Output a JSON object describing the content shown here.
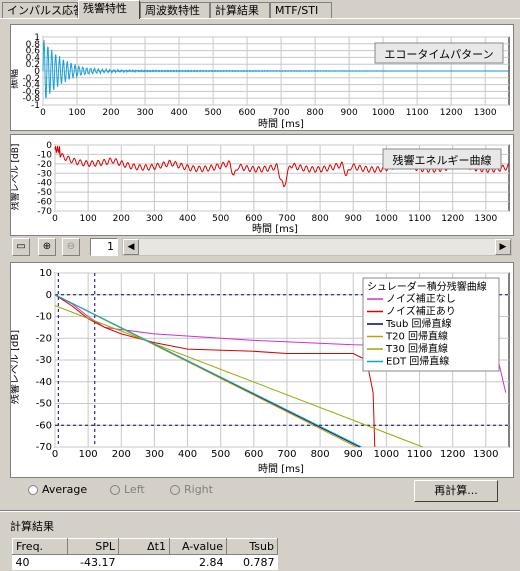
{
  "tabs": [
    "インパルス応答",
    "残響特性",
    "周波数特性",
    "計算結果",
    "MTF/STI"
  ],
  "active_tab": 1,
  "echo_chart": {
    "label": "エコータイムパターン",
    "ylabel": "振幅",
    "xlabel": "時間 [ms]",
    "yticks": [
      "1",
      "0.8",
      "0.6",
      "0.4",
      "0.2",
      "0",
      "-0.2",
      "-0.4",
      "-0.6",
      "-0.8",
      "-1"
    ],
    "xticks": [
      "0",
      "100",
      "200",
      "300",
      "400",
      "500",
      "600",
      "700",
      "800",
      "900",
      "1000",
      "1100",
      "1200",
      "1300"
    ]
  },
  "decay_chart": {
    "label": "残響エネルギー曲線",
    "ylabel": "残響レベル [dB]",
    "xlabel": "時間 [ms]",
    "yticks": [
      "0",
      "-10",
      "-20",
      "-30",
      "-40",
      "-50",
      "-60",
      "-70"
    ],
    "xticks": [
      "0",
      "100",
      "200",
      "300",
      "400",
      "500",
      "600",
      "700",
      "800",
      "900",
      "1000",
      "1100",
      "1200",
      "1300"
    ]
  },
  "nav": {
    "page": "1"
  },
  "schroeder_chart": {
    "ylabel": "残響レベル [dB]",
    "xlabel": "時間 [ms]",
    "yticks": [
      "10",
      "0",
      "-10",
      "-20",
      "-30",
      "-40",
      "-50",
      "-60",
      "-70"
    ],
    "xticks": [
      "0",
      "100",
      "200",
      "300",
      "400",
      "500",
      "600",
      "700",
      "800",
      "900",
      "1000",
      "1100",
      "1200",
      "1300"
    ],
    "legend_title": "シュレーダー積分残響曲線",
    "legend": [
      {
        "name": "ノイズ補正なし",
        "color": "#cc33cc"
      },
      {
        "name": "ノイズ補正あり",
        "color": "#dd0000"
      },
      {
        "name": "Tsub 回帰直線",
        "color": "#000080"
      },
      {
        "name": "T20 回帰直線",
        "color": "#cc9900"
      },
      {
        "name": "T30 回帰直線",
        "color": "#99aa00"
      },
      {
        "name": "EDT 回帰直線",
        "color": "#00aacc"
      }
    ]
  },
  "chart_data": [
    {
      "type": "line",
      "name": "エコータイムパターン",
      "xlim": [
        0,
        1370
      ],
      "ylim": [
        -1,
        1
      ],
      "note_shape": "decaying oscillation, amplitude ~1 at 0 ms decaying to ~0 by 200 ms"
    },
    {
      "type": "line",
      "name": "残響エネルギー曲線",
      "xlim": [
        0,
        1370
      ],
      "ylim": [
        -70,
        0
      ]
    },
    {
      "type": "line",
      "xlim": [
        0,
        1370
      ],
      "ylim": [
        -70,
        10
      ],
      "series": [
        {
          "name": "ノイズ補正なし",
          "x": [
            0,
            50,
            100,
            150,
            300,
            600,
            900,
            1200,
            1330,
            1360
          ],
          "y": [
            0,
            -4,
            -10,
            -15,
            -18,
            -21,
            -23,
            -24,
            -25,
            -45
          ]
        },
        {
          "name": "ノイズ補正あり",
          "x": [
            0,
            50,
            100,
            150,
            200,
            300,
            400,
            600,
            700,
            900,
            940,
            960,
            965
          ],
          "y": [
            0,
            -5,
            -11,
            -15,
            -18,
            -22,
            -25,
            -26,
            -27,
            -27,
            -30,
            -45,
            -70
          ]
        },
        {
          "name": "Tsub 回帰直線",
          "x": [
            0,
            920
          ],
          "y": [
            0,
            -70
          ]
        },
        {
          "name": "T20 回帰直線",
          "x": [
            0,
            910
          ],
          "y": [
            0,
            -70
          ]
        },
        {
          "name": "T30 回帰直線",
          "x": [
            0,
            1110
          ],
          "y": [
            -5,
            -70
          ]
        },
        {
          "name": "EDT 回帰直線",
          "x": [
            0,
            925
          ],
          "y": [
            0,
            -70
          ]
        }
      ]
    }
  ],
  "radios": [
    {
      "label": "Average",
      "disabled": false
    },
    {
      "label": "Left",
      "disabled": true
    },
    {
      "label": "Right",
      "disabled": true
    }
  ],
  "recalc_button": "再計算...",
  "results": {
    "title": "計算結果",
    "headers": [
      "Freq.",
      "SPL",
      "Δt1",
      "A-value",
      "Tsub"
    ],
    "row": [
      "40",
      "-43.17",
      "",
      "2.84",
      "0.787"
    ]
  }
}
